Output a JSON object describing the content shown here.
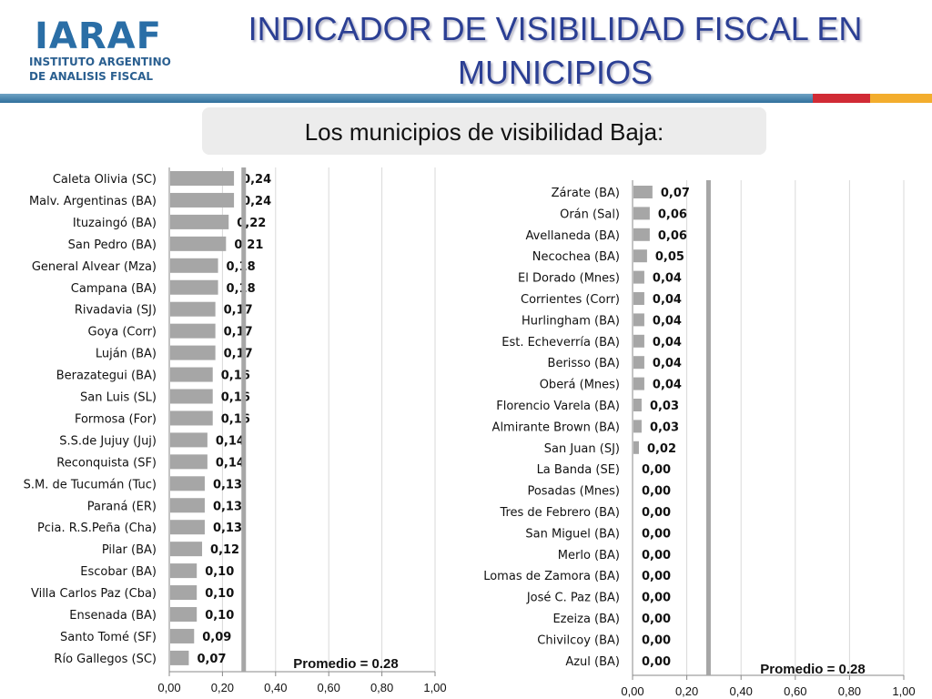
{
  "header": {
    "logo_text": "IARAF",
    "logo_subtitle_1": "INSTITUTO ARGENTINO",
    "logo_subtitle_2": "DE ANALISIS FISCAL",
    "title_line_1": "INDICADOR DE VISIBILIDAD FISCAL EN",
    "title_line_2": "MUNICIPIOS",
    "subtitle": "Los municipios de visibilidad Baja:"
  },
  "colors": {
    "title": "#2b3f94",
    "bar": "#a6a6a6",
    "average_line": "#a6a6a6",
    "stripe_blue": "#2f6f9c",
    "stripe_red": "#d12b35",
    "stripe_orange": "#f3ad2d"
  },
  "chart_data": [
    {
      "type": "bar",
      "orientation": "horizontal",
      "categories": [
        "Caleta Olivia (SC)",
        "Malv. Argentinas (BA)",
        "Ituzaingó (BA)",
        "San Pedro (BA)",
        "General Alvear (Mza)",
        "Campana (BA)",
        "Rivadavia (SJ)",
        "Goya (Corr)",
        "Luján (BA)",
        "Berazategui (BA)",
        "San Luis (SL)",
        "Formosa (For)",
        "S.S.de Jujuy (Juj)",
        "Reconquista (SF)",
        "S.M. de Tucumán (Tuc)",
        "Paraná (ER)",
        "Pcia. R.S.Peña (Cha)",
        "Pilar (BA)",
        "Escobar (BA)",
        "Villa Carlos Paz (Cba)",
        "Ensenada (BA)",
        "Santo Tomé  (SF)",
        "Río Gallegos (SC)"
      ],
      "values": [
        0.24,
        0.24,
        0.22,
        0.21,
        0.18,
        0.18,
        0.17,
        0.17,
        0.17,
        0.16,
        0.16,
        0.16,
        0.14,
        0.14,
        0.13,
        0.13,
        0.13,
        0.12,
        0.1,
        0.1,
        0.1,
        0.09,
        0.07
      ],
      "value_labels": [
        "0,24",
        "0,24",
        "0,22",
        "0,21",
        "0,18",
        "0,18",
        "0,17",
        "0,17",
        "0,17",
        "0,16",
        "0,16",
        "0,16",
        "0,14",
        "0,14",
        "0,13",
        "0,13",
        "0,13",
        "0,12",
        "0,10",
        "0,10",
        "0,10",
        "0,09",
        "0,07"
      ],
      "xlim": [
        0,
        1
      ],
      "x_ticks": [
        "0,00",
        "0,20",
        "0,40",
        "0,60",
        "0,80",
        "1,00"
      ],
      "grid": true,
      "average": 0.28,
      "average_label": "Promedio = 0.28"
    },
    {
      "type": "bar",
      "orientation": "horizontal",
      "categories": [
        "Zárate (BA)",
        "Orán (Sal)",
        "Avellaneda (BA)",
        "Necochea (BA)",
        "El Dorado (Mnes)",
        "Corrientes (Corr)",
        "Hurlingham (BA)",
        "Est. Echeverría (BA)",
        "Berisso (BA)",
        "Oberá (Mnes)",
        "Florencio Varela (BA)",
        "Almirante Brown (BA)",
        "San Juan (SJ)",
        "La Banda (SE)",
        "Posadas (Mnes)",
        "Tres de Febrero  (BA)",
        "San Miguel (BA)",
        "Merlo (BA)",
        "Lomas de Zamora (BA)",
        "José C. Paz (BA)",
        "Ezeiza (BA)",
        "Chivilcoy (BA)",
        "Azul (BA)"
      ],
      "values": [
        0.07,
        0.06,
        0.06,
        0.05,
        0.04,
        0.04,
        0.04,
        0.04,
        0.04,
        0.04,
        0.03,
        0.03,
        0.02,
        0.0,
        0.0,
        0.0,
        0.0,
        0.0,
        0.0,
        0.0,
        0.0,
        0.0,
        0.0
      ],
      "value_labels": [
        "0,07",
        "0,06",
        "0,06",
        "0,05",
        "0,04",
        "0,04",
        "0,04",
        "0,04",
        "0,04",
        "0,04",
        "0,03",
        "0,03",
        "0,02",
        "0,00",
        "0,00",
        "0,00",
        "0,00",
        "0,00",
        "0,00",
        "0,00",
        "0,00",
        "0,00",
        "0,00"
      ],
      "xlim": [
        0,
        1
      ],
      "x_ticks": [
        "0,00",
        "0,20",
        "0,40",
        "0,60",
        "0,80",
        "1,00"
      ],
      "grid": true,
      "average": 0.28,
      "average_label": "Promedio = 0.28"
    }
  ]
}
